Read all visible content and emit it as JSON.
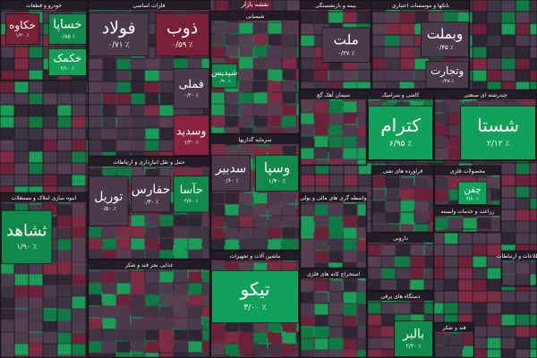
{
  "title": "نقشه بازار",
  "sectors": [
    {
      "name": "خودرو و قطعات",
      "tiles": [
        {
          "label": "خکاوه",
          "change": "٪ ۱/۲۰",
          "color": "#7a1f3a"
        },
        {
          "label": "خساپا",
          "change": "٪ ۰/۸۵",
          "color": "#0f8a4a"
        },
        {
          "label": "خکمک",
          "change": "٪ ۲/۱۰",
          "color": "#14a058"
        }
      ]
    },
    {
      "name": "فلزات اساسی",
      "tiles": [
        {
          "label": "ذوب",
          "change": "٪ ۰/۵۹",
          "color": "#7a1f3a"
        },
        {
          "label": "فولاد",
          "change": "٪ ۰/۷۱",
          "color": "#4a3a4c"
        },
        {
          "label": "فملی",
          "change": "٪ ۰/۴۰",
          "color": "#4a3a4c"
        },
        {
          "label": "وسدید",
          "change": "٪ ۱/۳۰",
          "color": "#8a2240"
        }
      ]
    },
    {
      "name": "شیمیایی",
      "tiles": [
        {
          "label": "شپدیس",
          "change": "٪ ۰/۹۰",
          "color": "#0f8a4a"
        }
      ]
    },
    {
      "name": "بیمه و بازنشستگی",
      "tiles": [
        {
          "label": "ملت",
          "change": "٪ ۰/۳۷",
          "color": "#4a3a4c"
        }
      ]
    },
    {
      "name": "بانکها و موسسات اعتباری",
      "tiles": [
        {
          "label": "وبملت",
          "change": "٪ ۰/۴۵",
          "color": "#4a3a4c"
        },
        {
          "label": "وتجارت",
          "change": "٪ ۰/۲۸",
          "color": "#4a3a4c"
        }
      ]
    },
    {
      "name": "سیمان آهک گچ",
      "tiles": []
    },
    {
      "name": "کاشی و سرامیک",
      "tiles": [
        {
          "label": "کترام",
          "change": "٪ ۶/۹۵",
          "color": "#12a15a"
        }
      ]
    },
    {
      "name": "چندرشته ای صنعتی",
      "tiles": [
        {
          "label": "شستا",
          "change": "٪ ۲/۱۲",
          "color": "#12a15a"
        }
      ]
    },
    {
      "name": "سرمایه گذاریها",
      "tiles": [
        {
          "label": "وسپا",
          "change": "٪ ۱/۴۰",
          "color": "#0f8a4a"
        },
        {
          "label": "سدبیر",
          "change": "٪ ۰/۶۰",
          "color": "#4a3a4c"
        }
      ]
    },
    {
      "name": "حمل و نقل انبارداری و ارتباطات",
      "tiles": [
        {
          "label": "توریل",
          "change": "٪ ۰/۵۰",
          "color": "#4a3a4c"
        },
        {
          "label": "حفارس",
          "change": "٪ ۰/۳۰",
          "color": "#4a3a4c"
        },
        {
          "label": "حآسا",
          "change": "٪ ۲/۸۰",
          "color": "#0f8a4a"
        }
      ]
    },
    {
      "name": "انبوه سازی املاک و مستغلات",
      "tiles": [
        {
          "label": "ثشاهد",
          "change": "٪ ۱/۹۰",
          "color": "#0f8a4a"
        }
      ]
    },
    {
      "name": "فراورده های نفتی",
      "tiles": []
    },
    {
      "name": "محصولات فلزی",
      "tiles": [
        {
          "label": "چفن",
          "change": "٪ ۴/۸۰",
          "color": "#12a15a"
        }
      ]
    },
    {
      "name": "واسطه گری های مالی و پولی",
      "tiles": []
    },
    {
      "name": "ماشین آلات و تجهیزات",
      "tiles": [
        {
          "label": "تیکو",
          "change": "٪ ۳/۰۰",
          "color": "#12a15a"
        }
      ]
    },
    {
      "name": "غذایی بجز قند و شکر",
      "tiles": []
    },
    {
      "name": "استخراج کانه های فلزی",
      "tiles": []
    },
    {
      "name": "دستگاه های برقی",
      "tiles": [
        {
          "label": "بالبر",
          "change": "٪ ۲/۴۰",
          "color": "#0f8a4a"
        }
      ]
    },
    {
      "name": "دارویی",
      "tiles": []
    },
    {
      "name": "زراعت و خدمات وابسته",
      "tiles": []
    },
    {
      "name": "اطلاعات و ارتباطات",
      "tiles": []
    },
    {
      "name": "قند و شکر",
      "tiles": []
    }
  ]
}
